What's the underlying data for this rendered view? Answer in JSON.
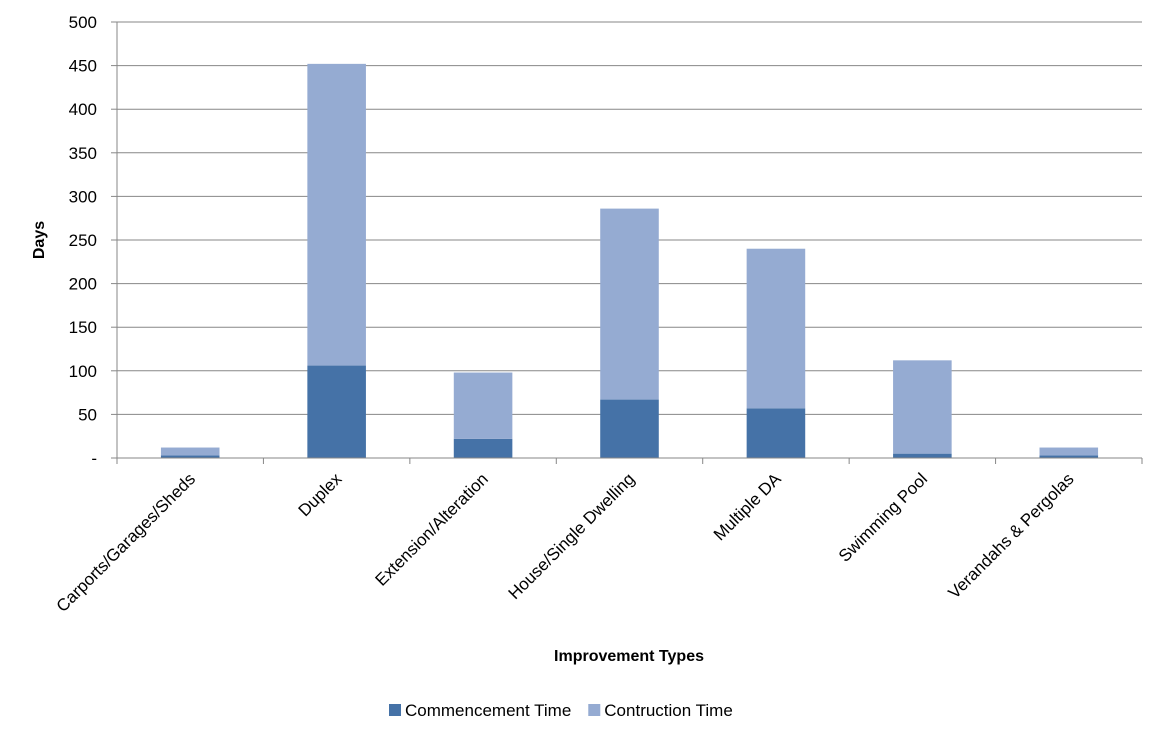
{
  "chart_data": {
    "type": "bar",
    "stacked": true,
    "title": "",
    "xlabel": "Improvement Types",
    "ylabel": "Days",
    "ylim": [
      0,
      500
    ],
    "yticks": [
      0,
      50,
      100,
      150,
      200,
      250,
      300,
      350,
      400,
      450,
      500
    ],
    "ytick_labels": [
      "-",
      "50",
      "100",
      "150",
      "200",
      "250",
      "300",
      "350",
      "400",
      "450",
      "500"
    ],
    "categories": [
      "Carports/Garages/Sheds",
      "Duplex",
      "Extension/Alteration",
      "House/Single Dwelling",
      "Multiple DA",
      "Swimming Pool",
      "Verandahs & Pergolas"
    ],
    "series": [
      {
        "name": "Commencement Time",
        "color": "#4572A7",
        "values": [
          3,
          106,
          22,
          67,
          57,
          5,
          3
        ]
      },
      {
        "name": "Contruction Time",
        "color": "#95ABD2",
        "values": [
          9,
          346,
          76,
          219,
          183,
          107,
          9
        ]
      }
    ],
    "grid": true,
    "legend_position": "bottom",
    "gridline_color": "#878787",
    "axis_color": "#878787"
  }
}
